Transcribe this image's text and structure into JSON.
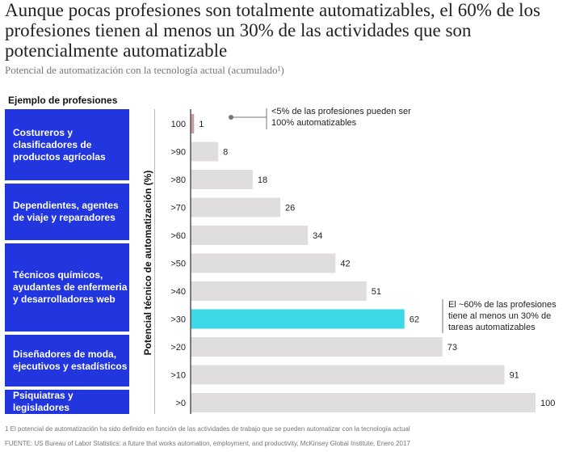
{
  "title": "Aunque pocas profesiones son totalmente automatizables, el 60% de los profesiones tienen al menos un 30% de las actividades que son potencialmente automatizable",
  "subtitle": "Potencial de automatización con la tecnología actual (acumulado¹)",
  "examples": {
    "heading": "Ejemplo de profesiones",
    "items": [
      "Costureros y clasificadores de productos agrícolas",
      "Dependientes, agentes de viaje y reparadores",
      "Técnicos químicos, ayudantes de enfermeria y desarrolladores web",
      "Diseñadores de moda, ejecutivos y estadísticos",
      "Psiquiatras y legisladores"
    ]
  },
  "chart_data": {
    "type": "bar",
    "orientation": "horizontal",
    "ylabel": "Potencial técnico de automatización (%)",
    "categories": [
      "100",
      ">90",
      ">80",
      ">70",
      ">60",
      ">50",
      ">40",
      ">30",
      ">20",
      ">10",
      ">0"
    ],
    "values": [
      1,
      8,
      18,
      26,
      34,
      42,
      51,
      62,
      73,
      91,
      100
    ],
    "highlight_index": 7,
    "colors": {
      "bar": "#e0dedd",
      "highlight": "#3dd9e6",
      "edge": "#c9a0a0"
    },
    "annotations": [
      "<5% de las profesiones pueden ser 100% automatizables",
      "El ~60% de las profesiones tiene al menos un 30% de tareas automatizables"
    ]
  },
  "footnotes": [
    "1 El potencial de automatización ha sido definido en función de las actividades de trabajo que se pueden automatizar con la tecnología actual",
    "FUENTE: US Bureau of Labor Statistics: a future that works automation, employment, and productivity, McKinsey Global Institute, Enero 2017"
  ]
}
